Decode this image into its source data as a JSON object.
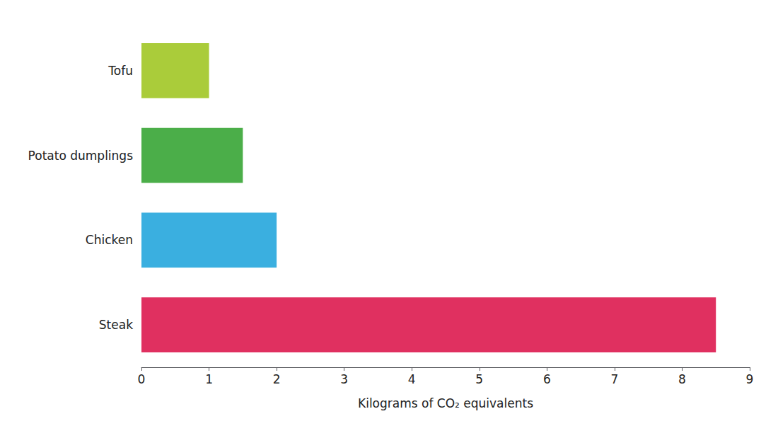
{
  "chart_data": {
    "type": "bar",
    "orientation": "horizontal",
    "categories": [
      "Steak",
      "Chicken",
      "Potato dumplings",
      "Tofu"
    ],
    "values": [
      8.5,
      2.0,
      1.5,
      1.0
    ],
    "colors": [
      "#E03060",
      "#3AAFE0",
      "#4BAE49",
      "#AACC3A"
    ],
    "xlabel": "Kilograms of CO₂ equivalents",
    "xlim": [
      0,
      9
    ],
    "xticks": [
      0,
      1,
      2,
      3,
      4,
      5,
      6,
      7,
      8,
      9
    ],
    "grid": false
  }
}
